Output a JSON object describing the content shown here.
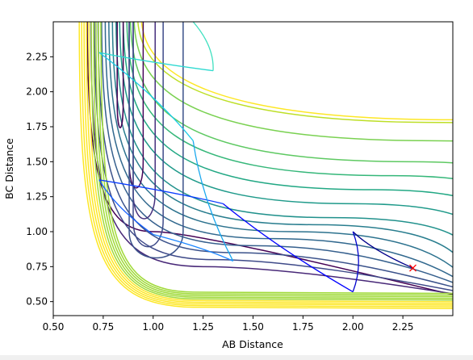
{
  "chart_data": {
    "type": "contour",
    "title": "",
    "xlabel": "AB Distance",
    "ylabel": "BC Distance",
    "xlim": [
      0.5,
      2.5
    ],
    "ylim": [
      0.4,
      2.5
    ],
    "x_ticks": [
      "0.50",
      "0.75",
      "1.00",
      "1.25",
      "1.50",
      "1.75",
      "2.00",
      "2.25"
    ],
    "y_ticks": [
      "0.50",
      "0.75",
      "1.00",
      "1.25",
      "1.50",
      "1.75",
      "2.00",
      "2.25"
    ],
    "colormap": [
      "#440154",
      "#3b528b",
      "#21918c",
      "#5ec962",
      "#fde725"
    ],
    "contour_levels": [
      {
        "x": 1.0,
        "y": 1.0,
        "color": "#440154"
      },
      {
        "x": 1.25,
        "y": 0.75,
        "color": "#482878"
      },
      {
        "x": 1.3,
        "y": 0.8,
        "color": "#3e4a89"
      },
      {
        "x": 1.4,
        "y": 0.85,
        "color": "#3b528b"
      },
      {
        "x": 1.5,
        "y": 0.9,
        "color": "#355f8d"
      },
      {
        "x": 1.6,
        "y": 0.95,
        "color": "#31688e"
      },
      {
        "x": 1.7,
        "y": 1.0,
        "color": "#2c728e"
      },
      {
        "x": 1.8,
        "y": 1.05,
        "color": "#287d8e"
      },
      {
        "x": 1.9,
        "y": 1.1,
        "color": "#21918c"
      },
      {
        "x": 2.0,
        "y": 1.2,
        "color": "#1f9a8a"
      },
      {
        "x": 2.1,
        "y": 1.3,
        "color": "#22a884"
      },
      {
        "x": 2.2,
        "y": 1.4,
        "color": "#35b779"
      },
      {
        "x": 2.3,
        "y": 1.5,
        "color": "#5ec962"
      },
      {
        "x": 2.4,
        "y": 1.65,
        "color": "#7ad151"
      },
      {
        "x": 2.45,
        "y": 1.78,
        "color": "#bddf26"
      },
      {
        "x": 2.5,
        "y": 1.8,
        "color": "#fde725"
      }
    ],
    "trajectory_start": {
      "x": 2.3,
      "y": 0.74,
      "marker": "x",
      "color": "#ff0000"
    },
    "trajectory": [
      {
        "x": 2.3,
        "y": 0.74,
        "color": "#00008b"
      },
      {
        "x": 2.0,
        "y": 1.0,
        "color": "#0000cd"
      },
      {
        "x": 2.0,
        "y": 0.57,
        "color": "#0000ff"
      },
      {
        "x": 1.35,
        "y": 1.2,
        "color": "#0a3cff"
      },
      {
        "x": 0.73,
        "y": 1.37,
        "color": "#1560ff"
      },
      {
        "x": 1.0,
        "y": 0.98,
        "color": "#1a85ff"
      },
      {
        "x": 1.4,
        "y": 0.79,
        "color": "#1aa8ee"
      },
      {
        "x": 1.2,
        "y": 1.65,
        "color": "#1ccbe6"
      },
      {
        "x": 0.73,
        "y": 2.28,
        "color": "#2bd9d0"
      },
      {
        "x": 1.3,
        "y": 2.15,
        "color": "#40e0c0"
      },
      {
        "x": 1.2,
        "y": 2.5,
        "color": "#56e8b0"
      }
    ]
  }
}
